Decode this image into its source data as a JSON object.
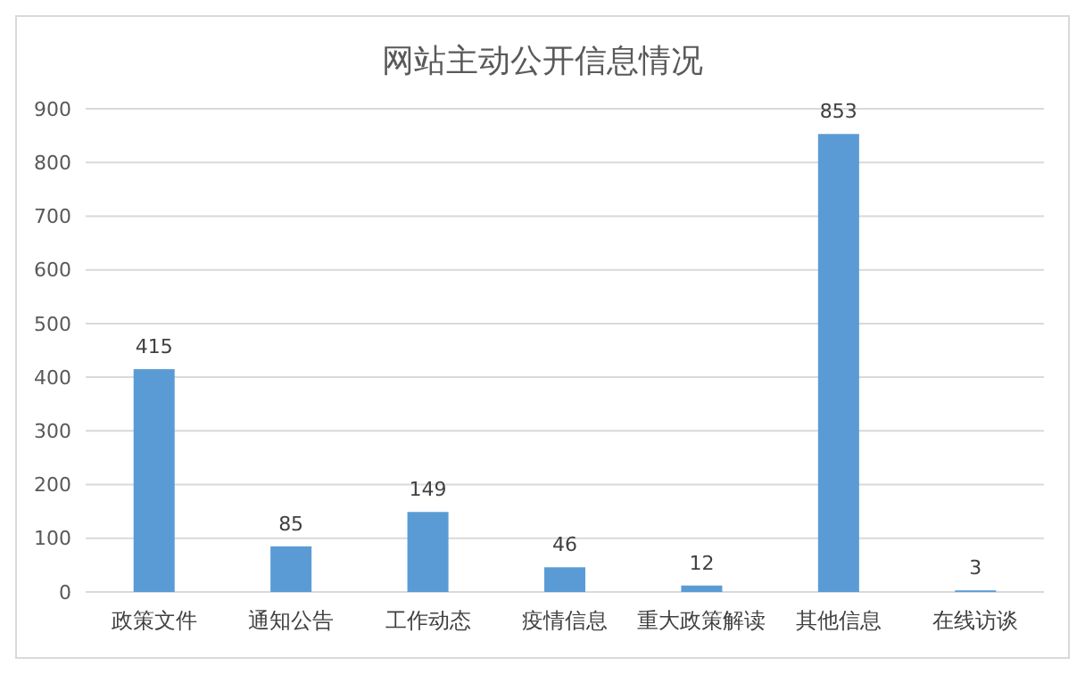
{
  "chart_data": {
    "type": "bar",
    "title": "网站主动公开信息情况",
    "categories": [
      "政策文件",
      "通知公告",
      "工作动态",
      "疫情信息",
      "重大政策解读",
      "其他信息",
      "在线访谈"
    ],
    "values": [
      415,
      85,
      149,
      46,
      12,
      853,
      3
    ],
    "color": "#5b9bd5",
    "ylim": [
      0,
      900
    ],
    "yticks": [
      0,
      100,
      200,
      300,
      400,
      500,
      600,
      700,
      800,
      900
    ],
    "grid": "y",
    "data_labels": true
  }
}
